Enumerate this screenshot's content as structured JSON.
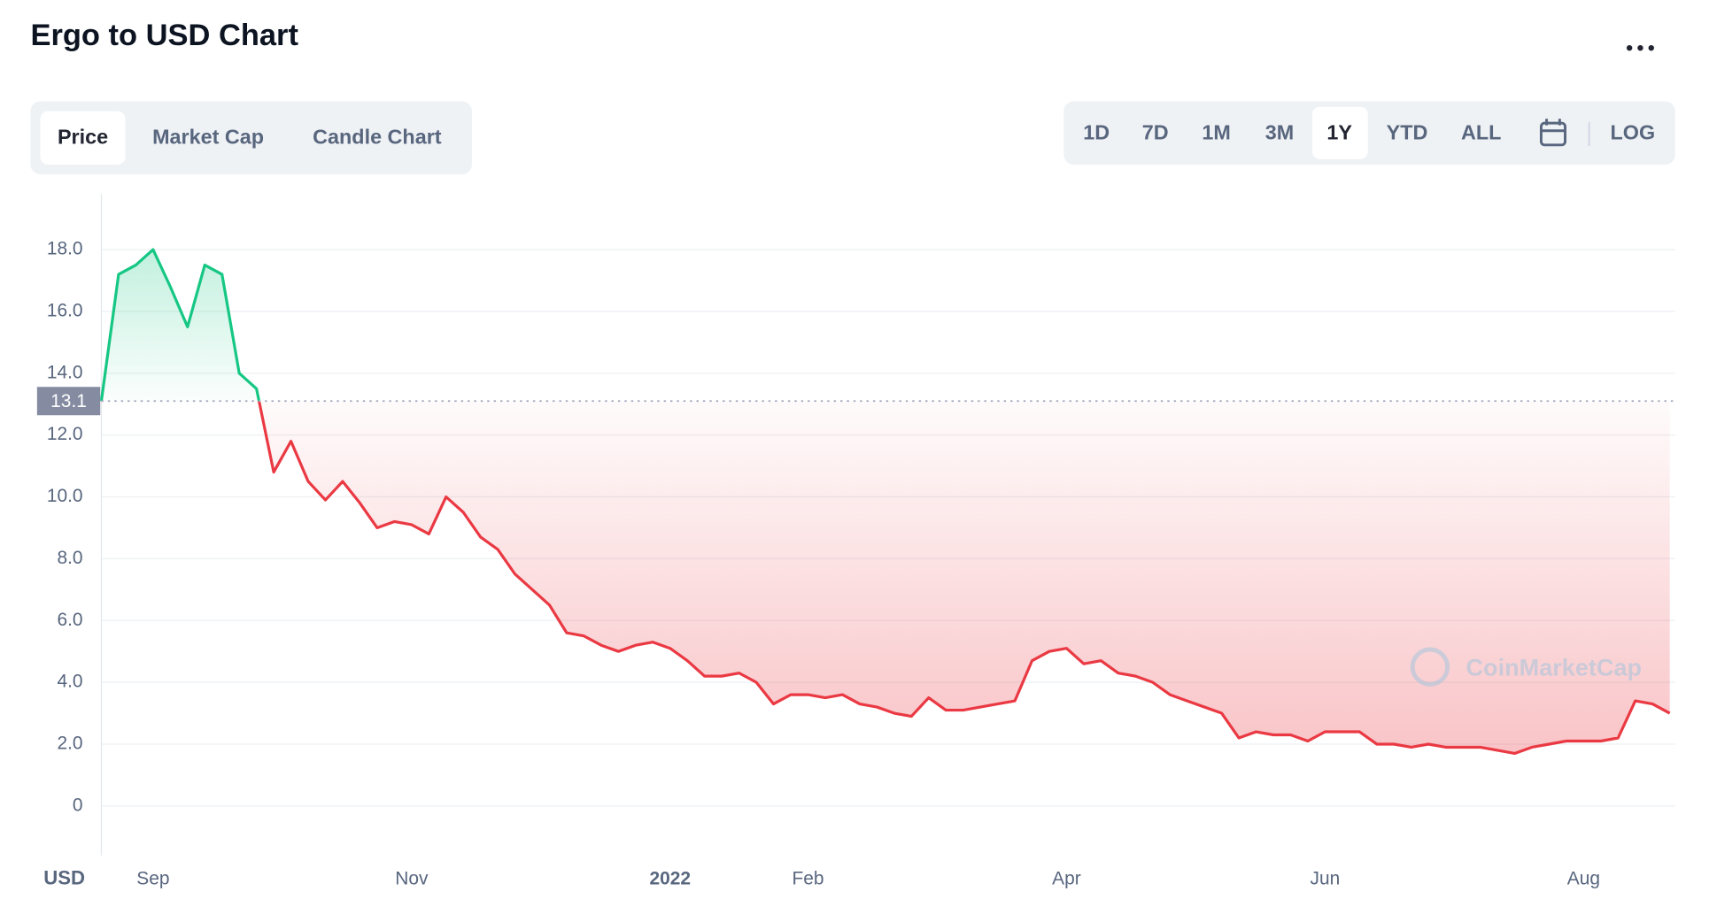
{
  "chart_data": {
    "type": "line",
    "title": "Ergo to USD Chart",
    "y_axis_label": "USD",
    "watermark": "CoinMarketCap",
    "up_color": "#16c784",
    "down_color": "#ea3943",
    "grid": true,
    "reference": 13.1,
    "categories": [
      null,
      null,
      null,
      "Sep",
      null,
      null,
      null,
      null,
      null,
      null,
      null,
      null,
      null,
      null,
      null,
      null,
      null,
      null,
      "Nov",
      null,
      null,
      null,
      null,
      null,
      null,
      null,
      null,
      null,
      null,
      null,
      null,
      null,
      null,
      "2022",
      null,
      null,
      null,
      null,
      null,
      null,
      null,
      "Feb",
      null,
      null,
      null,
      null,
      null,
      null,
      null,
      null,
      null,
      null,
      null,
      null,
      null,
      null,
      "Apr",
      null,
      null,
      null,
      null,
      null,
      null,
      null,
      null,
      null,
      null,
      null,
      null,
      null,
      null,
      "Jun",
      null,
      null,
      null,
      null,
      null,
      null,
      null,
      null,
      null,
      null,
      null,
      null,
      null,
      null,
      "Aug",
      null,
      null,
      null,
      null,
      null
    ],
    "values": [
      13.1,
      17.2,
      17.5,
      18.0,
      16.8,
      15.5,
      17.5,
      17.2,
      14.0,
      13.5,
      10.8,
      11.8,
      10.5,
      9.9,
      10.5,
      9.8,
      9.0,
      9.2,
      9.1,
      8.8,
      10.0,
      9.5,
      8.7,
      8.3,
      7.5,
      7.0,
      6.5,
      5.6,
      5.5,
      5.2,
      5.0,
      5.2,
      5.3,
      5.1,
      4.7,
      4.2,
      4.2,
      4.3,
      4.0,
      3.3,
      3.6,
      3.6,
      3.5,
      3.6,
      3.3,
      3.2,
      3.0,
      2.9,
      3.5,
      3.1,
      3.1,
      3.2,
      3.3,
      3.4,
      4.7,
      5.0,
      5.1,
      4.6,
      4.7,
      4.3,
      4.2,
      4.0,
      3.6,
      3.4,
      3.2,
      3.0,
      2.2,
      2.4,
      2.3,
      2.3,
      2.1,
      2.4,
      2.4,
      2.4,
      2.0,
      2.0,
      1.9,
      2.0,
      1.9,
      1.9,
      1.9,
      1.8,
      1.7,
      1.9,
      2.0,
      2.1,
      2.1,
      2.1,
      2.2,
      3.4,
      3.3,
      3.0
    ],
    "ylim": [
      -1.6,
      19.8
    ],
    "yticks": [
      0,
      {
        "value": 2,
        "label": "2.0"
      },
      {
        "value": 4,
        "label": "4.0"
      },
      {
        "value": 6,
        "label": "6.0"
      },
      {
        "value": 8,
        "label": "8.0"
      },
      {
        "value": 10,
        "label": "10.0"
      },
      {
        "value": 12,
        "label": "12.0"
      },
      {
        "value": 14,
        "label": "14.0"
      },
      {
        "value": 16,
        "label": "16.0"
      },
      {
        "value": 18,
        "label": "18.0"
      }
    ]
  },
  "controls": {
    "tabs": [
      "Price",
      "Market Cap",
      "Candle Chart"
    ],
    "ranges": [
      "1D",
      "7D",
      "1M",
      "3M",
      "1Y",
      "YTD",
      "ALL"
    ],
    "log": "LOG"
  }
}
